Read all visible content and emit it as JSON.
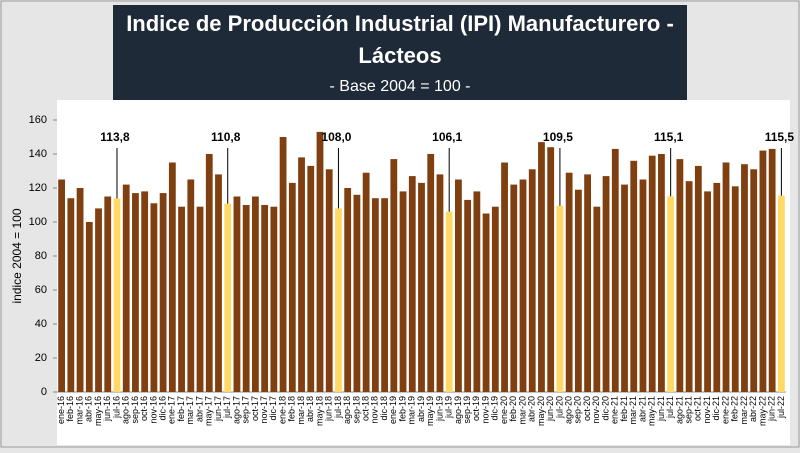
{
  "chart_data": {
    "type": "bar",
    "title": [
      "Indice de Producción Industrial (IPI) Manufacturero -",
      "Lácteos"
    ],
    "subtitle": "- Base 2004 = 100 -",
    "y_label": "indice 2004 = 100",
    "categories": [
      "ene-16",
      "feb-16",
      "mar-16",
      "abr-16",
      "may-16",
      "jun-16",
      "jul-16",
      "ago-16",
      "sep-16",
      "oct-16",
      "nov-16",
      "dic-16",
      "ene-17",
      "feb-17",
      "mar-17",
      "abr-17",
      "may-17",
      "jun-17",
      "jul-17",
      "ago-17",
      "sep-17",
      "oct-17",
      "nov-17",
      "dic-17",
      "ene-18",
      "feb-18",
      "mar-18",
      "abr-18",
      "may-18",
      "jun-18",
      "jul-18",
      "ago-18",
      "sep-18",
      "oct-18",
      "nov-18",
      "dic-18",
      "ene-19",
      "feb-19",
      "mar-19",
      "abr-19",
      "may-19",
      "jun-19",
      "jul-19",
      "ago-19",
      "sep-19",
      "oct-19",
      "nov-19",
      "dic-19",
      "ene-20",
      "feb-20",
      "mar-20",
      "abr-20",
      "may-20",
      "jun-20",
      "jul-20",
      "ago-20",
      "sep-20",
      "oct-20",
      "nov-20",
      "dic-20",
      "ene-21",
      "feb-21",
      "mar-21",
      "abr-21",
      "may-21",
      "jun-21",
      "jul-21",
      "ago-21",
      "sep-21",
      "oct-21",
      "nov-21",
      "dic-21",
      "ene-22",
      "feb-22",
      "mar-22",
      "abr-22",
      "may-22",
      "jun-22",
      "jul-22"
    ],
    "values": [
      125,
      114,
      120,
      100,
      108,
      115,
      113.8,
      122,
      117,
      118,
      111,
      117,
      135,
      109,
      125,
      109,
      140,
      128,
      110.8,
      115,
      110,
      115,
      110,
      109,
      150,
      123,
      138,
      133,
      153,
      131,
      108.0,
      120,
      116,
      129,
      114,
      114,
      137,
      118,
      127,
      123,
      140,
      128,
      106.1,
      125,
      113,
      118,
      105,
      109,
      135,
      122,
      125,
      131,
      147,
      144,
      109.5,
      129,
      119,
      128,
      109,
      127,
      143,
      122,
      136,
      125,
      139,
      140,
      115.1,
      137,
      124,
      133,
      118,
      123,
      135,
      121,
      134,
      131,
      142,
      143,
      115.5
    ],
    "value_labels": [
      null,
      null,
      null,
      null,
      null,
      null,
      "113,8",
      null,
      null,
      null,
      null,
      null,
      null,
      null,
      null,
      null,
      null,
      null,
      "110,8",
      null,
      null,
      null,
      null,
      null,
      null,
      null,
      null,
      null,
      null,
      null,
      "108,0",
      null,
      null,
      null,
      null,
      null,
      null,
      null,
      null,
      null,
      null,
      null,
      "106,1",
      null,
      null,
      null,
      null,
      null,
      null,
      null,
      null,
      null,
      null,
      null,
      "109,5",
      null,
      null,
      null,
      null,
      null,
      null,
      null,
      null,
      null,
      null,
      null,
      "115,1",
      null,
      null,
      null,
      null,
      null,
      null,
      null,
      null,
      null,
      null,
      null,
      "115,5"
    ],
    "color": "#7f3f10",
    "highlight_color": "#ffd966",
    "ylim": [
      0,
      160
    ],
    "yticks": [
      0,
      20,
      40,
      60,
      80,
      100,
      120,
      140,
      160
    ],
    "grid": false
  }
}
